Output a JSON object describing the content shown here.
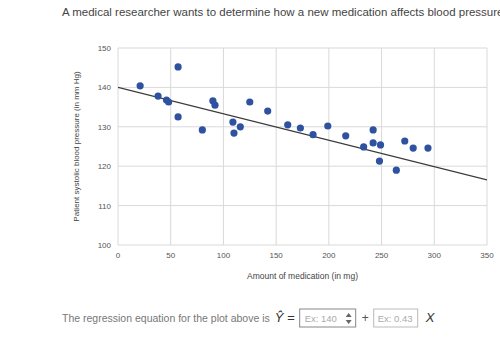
{
  "chart_data": {
    "type": "scatter",
    "title": "A medical researcher wants to determine how a new medication affects blood pressure.",
    "x_label": "Amount of medication (in mg)",
    "y_label": "Patient systolic blood pressure (in mm Hg)",
    "xlim": [
      0,
      350
    ],
    "ylim": [
      100,
      150
    ],
    "xticks": [
      0,
      50,
      100,
      150,
      200,
      250,
      300,
      350
    ],
    "yticks": [
      100,
      110,
      120,
      130,
      140,
      150
    ],
    "grid": true,
    "series": [
      {
        "type": "scatter",
        "marker": "circle",
        "color": "#2f52a0",
        "x": [
          21,
          38,
          46,
          48,
          57,
          57,
          80,
          90,
          92,
          109,
          110,
          116,
          125,
          142,
          161,
          173,
          185,
          199,
          216,
          233,
          242,
          242,
          249,
          248,
          264,
          272,
          280,
          294
        ],
        "values": [
          140.4,
          137.8,
          136.8,
          136.3,
          145.2,
          132.5,
          129.2,
          136.6,
          135.5,
          131.2,
          128.4,
          130,
          136.3,
          134,
          130.5,
          129.7,
          128,
          130.2,
          127.7,
          124.9,
          129.2,
          125.9,
          125.4,
          121.3,
          119,
          126.4,
          124.6,
          124.6
        ]
      },
      {
        "type": "line",
        "line_style": "solid",
        "color": "#3a3a3a",
        "x": [
          0,
          350
        ],
        "values": [
          140,
          116.5
        ]
      }
    ],
    "annotations": [
      "The regression equation for the plot above is",
      "Ŷ =",
      "Ex: 140",
      "+",
      "Ex: 0.43",
      "X"
    ]
  }
}
